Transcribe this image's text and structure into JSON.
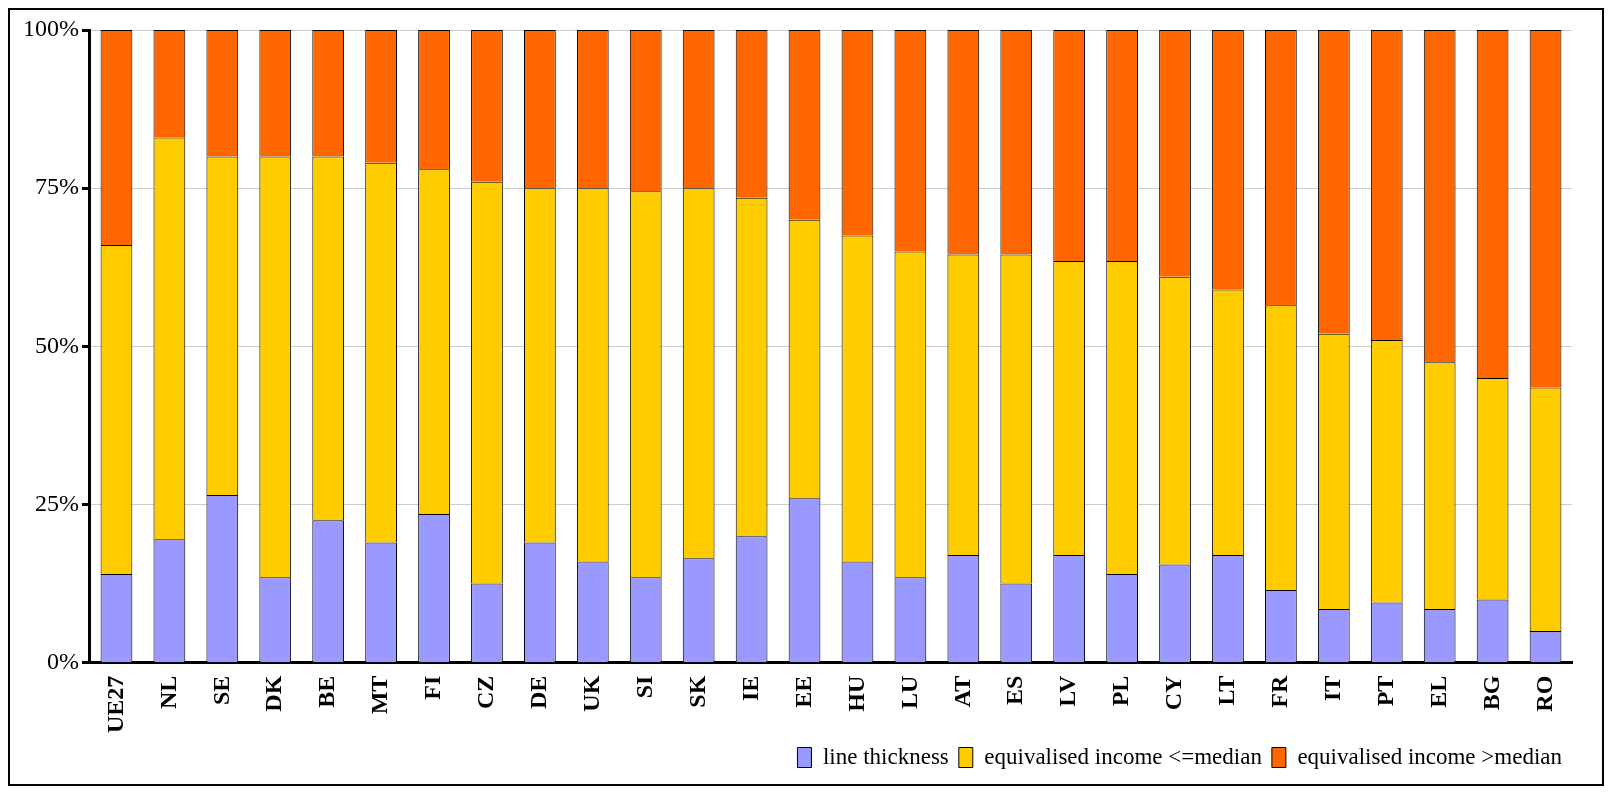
{
  "chart_data": {
    "type": "bar",
    "stacked": true,
    "categories": [
      "UE27",
      "NL",
      "SE",
      "DK",
      "BE",
      "MT",
      "FI",
      "CZ",
      "DE",
      "UK",
      "SI",
      "SK",
      "IE",
      "EE",
      "HU",
      "LU",
      "AT",
      "ES",
      "LV",
      "PL",
      "CY",
      "LT",
      "FR",
      "IT",
      "PT",
      "EL",
      "BG",
      "RO"
    ],
    "series": [
      {
        "name": "line thickness",
        "color": "#9999ff",
        "values": [
          14,
          19.5,
          26.5,
          13.5,
          22.5,
          19,
          23.5,
          12.5,
          19,
          16,
          13.5,
          16.5,
          20,
          26,
          16,
          13.5,
          17,
          12.5,
          17,
          14,
          15.5,
          17,
          11.5,
          8.5,
          9.5,
          8.5,
          10,
          5
        ]
      },
      {
        "name": "equivalised income <=median",
        "color": "#ffcc00",
        "values": [
          52,
          63.5,
          53.5,
          66.5,
          57.5,
          60,
          54.5,
          63.5,
          56,
          59,
          61,
          58.5,
          53.5,
          44,
          51.5,
          51.5,
          47.5,
          52,
          46.5,
          49.5,
          45.5,
          42,
          45,
          43.5,
          41.5,
          39,
          35,
          38.5
        ]
      },
      {
        "name": "equivalised income >median",
        "color": "#ff6600",
        "values": [
          34,
          17,
          20,
          20,
          20,
          21,
          22,
          24,
          25,
          25,
          25.5,
          25,
          26.5,
          30,
          32.5,
          35,
          35.5,
          35.5,
          36.5,
          36.5,
          39,
          41,
          43.5,
          48,
          49,
          52.5,
          55,
          56.5
        ]
      }
    ],
    "ylim": [
      0,
      100
    ],
    "yticks": [
      {
        "value": 0,
        "label": "0%"
      },
      {
        "value": 25,
        "label": "25%"
      },
      {
        "value": 50,
        "label": "50%"
      },
      {
        "value": 75,
        "label": "75%"
      },
      {
        "value": 100,
        "label": "100%"
      }
    ],
    "grid": "y",
    "legend": "bottom right"
  }
}
